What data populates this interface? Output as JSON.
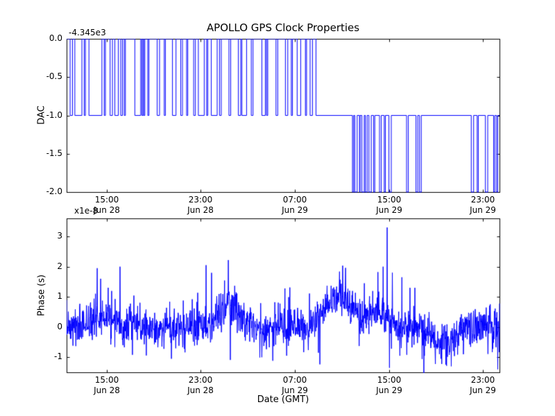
{
  "figure": {
    "background_color": "#ffffff",
    "line_color": "#0000ff",
    "axes_color": "#000000",
    "text_color": "#000000"
  },
  "chart_data": [
    {
      "type": "line",
      "title": "APOLLO GPS Clock Properties",
      "ylabel": "DAC",
      "y_offset_text": "-4.345e3",
      "x_unit": "hours since Jun 28 00:00 GMT",
      "xlim": [
        11.6,
        48.4
      ],
      "ylim": [
        -2.0,
        0.0
      ],
      "grid": false,
      "legend": false,
      "x_ticks": [
        {
          "v": 15,
          "label": "15:00\nJun 28"
        },
        {
          "v": 23,
          "label": "23:00\nJun 28"
        },
        {
          "v": 31,
          "label": "07:00\nJun 29"
        },
        {
          "v": 39,
          "label": "15:00\nJun 29"
        },
        {
          "v": 47,
          "label": "23:00\nJun 29"
        }
      ],
      "y_ticks": [
        {
          "v": 0.0,
          "label": "0.0"
        },
        {
          "v": -0.5,
          "label": "-0.5"
        },
        {
          "v": -1.0,
          "label": "-1.0"
        },
        {
          "v": -1.5,
          "label": "-1.5"
        },
        {
          "v": -2.0,
          "label": "-2.0"
        }
      ],
      "series": [
        {
          "name": "DAC",
          "style": "step",
          "points": [
            [
              11.6,
              0
            ],
            [
              11.9,
              -1
            ],
            [
              12.1,
              0
            ],
            [
              12.3,
              -1
            ],
            [
              12.9,
              0
            ],
            [
              13.1,
              -1
            ],
            [
              13.2,
              0
            ],
            [
              13.5,
              -1
            ],
            [
              14.6,
              0
            ],
            [
              14.8,
              -1
            ],
            [
              14.9,
              0
            ],
            [
              15.3,
              -1
            ],
            [
              15.5,
              0
            ],
            [
              15.7,
              -1
            ],
            [
              16.0,
              0
            ],
            [
              16.2,
              -1
            ],
            [
              16.35,
              0
            ],
            [
              16.5,
              -1
            ],
            [
              16.6,
              0
            ],
            [
              17.4,
              -1
            ],
            [
              17.9,
              0
            ],
            [
              18.0,
              -1
            ],
            [
              18.1,
              0
            ],
            [
              18.15,
              -1
            ],
            [
              18.25,
              0
            ],
            [
              18.5,
              -1
            ],
            [
              18.6,
              0
            ],
            [
              19.3,
              -1
            ],
            [
              19.5,
              0
            ],
            [
              19.9,
              -1
            ],
            [
              20.0,
              0
            ],
            [
              20.6,
              -1
            ],
            [
              20.9,
              0
            ],
            [
              21.3,
              -1
            ],
            [
              21.45,
              0
            ],
            [
              21.8,
              -1
            ],
            [
              21.9,
              0
            ],
            [
              22.4,
              -1
            ],
            [
              22.55,
              0
            ],
            [
              22.8,
              -1
            ],
            [
              23.3,
              0
            ],
            [
              23.5,
              -1
            ],
            [
              23.6,
              0
            ],
            [
              23.9,
              -1
            ],
            [
              24.4,
              0
            ],
            [
              24.6,
              -1
            ],
            [
              24.75,
              0
            ],
            [
              25.4,
              -1
            ],
            [
              25.55,
              0
            ],
            [
              26.2,
              -1
            ],
            [
              26.4,
              0
            ],
            [
              26.5,
              -1
            ],
            [
              26.9,
              0
            ],
            [
              27.3,
              -1
            ],
            [
              27.45,
              0
            ],
            [
              28.2,
              -1
            ],
            [
              28.5,
              0
            ],
            [
              28.6,
              -1
            ],
            [
              28.7,
              0
            ],
            [
              29.4,
              -1
            ],
            [
              29.55,
              0
            ],
            [
              30.2,
              -1
            ],
            [
              30.4,
              0
            ],
            [
              30.7,
              -1
            ],
            [
              30.8,
              0
            ],
            [
              31.2,
              -1
            ],
            [
              31.5,
              0
            ],
            [
              31.9,
              -1
            ],
            [
              32.0,
              0
            ],
            [
              32.3,
              -1
            ],
            [
              32.5,
              0
            ],
            [
              32.8,
              -1
            ],
            [
              35.9,
              -2
            ],
            [
              36.0,
              -1
            ],
            [
              36.1,
              -2
            ],
            [
              36.3,
              -1
            ],
            [
              36.5,
              -2
            ],
            [
              36.55,
              -1
            ],
            [
              36.7,
              -2
            ],
            [
              36.9,
              -1
            ],
            [
              37.0,
              -2
            ],
            [
              37.15,
              -1
            ],
            [
              37.3,
              -2
            ],
            [
              37.5,
              -1
            ],
            [
              37.7,
              -2
            ],
            [
              37.8,
              -1
            ],
            [
              38.2,
              -2
            ],
            [
              38.35,
              -1
            ],
            [
              38.6,
              -2
            ],
            [
              38.7,
              -1
            ],
            [
              39.0,
              -2
            ],
            [
              39.2,
              -1
            ],
            [
              40.5,
              -2
            ],
            [
              40.65,
              -1
            ],
            [
              41.3,
              -2
            ],
            [
              41.45,
              -1
            ],
            [
              41.6,
              -2
            ],
            [
              41.75,
              -1
            ],
            [
              46.0,
              -2
            ],
            [
              46.2,
              -1
            ],
            [
              46.5,
              -2
            ],
            [
              46.6,
              -1
            ],
            [
              47.2,
              -2
            ],
            [
              47.4,
              -1
            ],
            [
              47.9,
              -2
            ],
            [
              48.0,
              -1
            ],
            [
              48.15,
              -2
            ],
            [
              48.25,
              -1
            ]
          ]
        }
      ]
    },
    {
      "type": "line",
      "ylabel": "Phase (s)",
      "xlabel": "Date (GMT)",
      "y_offset_text": "x1e-8",
      "x_unit": "hours since Jun 28 00:00 GMT",
      "xlim": [
        11.6,
        48.4
      ],
      "ylim": [
        -1.5,
        3.6
      ],
      "grid": false,
      "legend": false,
      "x_ticks": [
        {
          "v": 15,
          "label": "15:00\nJun 28"
        },
        {
          "v": 23,
          "label": "23:00\nJun 28"
        },
        {
          "v": 31,
          "label": "07:00\nJun 29"
        },
        {
          "v": 39,
          "label": "15:00\nJun 29"
        },
        {
          "v": 47,
          "label": "23:00\nJun 29"
        }
      ],
      "y_ticks": [
        {
          "v": 3,
          "label": "3"
        },
        {
          "v": 2,
          "label": "2"
        },
        {
          "v": 1,
          "label": "1"
        },
        {
          "v": 0,
          "label": "0"
        },
        {
          "v": -1,
          "label": "-1"
        }
      ],
      "series": [
        {
          "name": "Phase",
          "style": "noise",
          "synthesis": {
            "seed": 7,
            "n_points": 1500,
            "baseline": 0,
            "noise_std": 0.32,
            "outlier_prob": 0.02,
            "outlier_scale": 1.6,
            "bumps": [
              {
                "center": 14.5,
                "width": 1.6,
                "height": 0.3
              },
              {
                "center": 25.4,
                "width": 1.2,
                "height": 0.7
              },
              {
                "center": 34.7,
                "width": 1.7,
                "height": 1.0
              },
              {
                "center": 38.0,
                "width": 1.0,
                "height": 0.5
              },
              {
                "center": 43.7,
                "width": 1.3,
                "height": -0.5
              }
            ],
            "spikes": [
              {
                "t": 14.2,
                "v": 1.95
              },
              {
                "t": 14.5,
                "v": 1.6
              },
              {
                "t": 16.15,
                "v": 2.0
              },
              {
                "t": 20.5,
                "v": -1.05
              },
              {
                "t": 23.45,
                "v": 2.05
              },
              {
                "t": 26.0,
                "v": 1.15
              },
              {
                "t": 28.2,
                "v": -1.0
              },
              {
                "t": 30.3,
                "v": -0.95
              },
              {
                "t": 33.0,
                "v": -0.85
              },
              {
                "t": 36.9,
                "v": 1.45
              },
              {
                "t": 38.5,
                "v": 2.0
              },
              {
                "t": 38.85,
                "v": 3.3
              },
              {
                "t": 39.05,
                "v": -1.35
              },
              {
                "t": 39.3,
                "v": 1.8
              },
              {
                "t": 40.1,
                "v": 1.65
              },
              {
                "t": 41.2,
                "v": 1.3
              },
              {
                "t": 44.3,
                "v": -1.3
              },
              {
                "t": 48.25,
                "v": -1.4
              }
            ]
          }
        }
      ]
    }
  ]
}
